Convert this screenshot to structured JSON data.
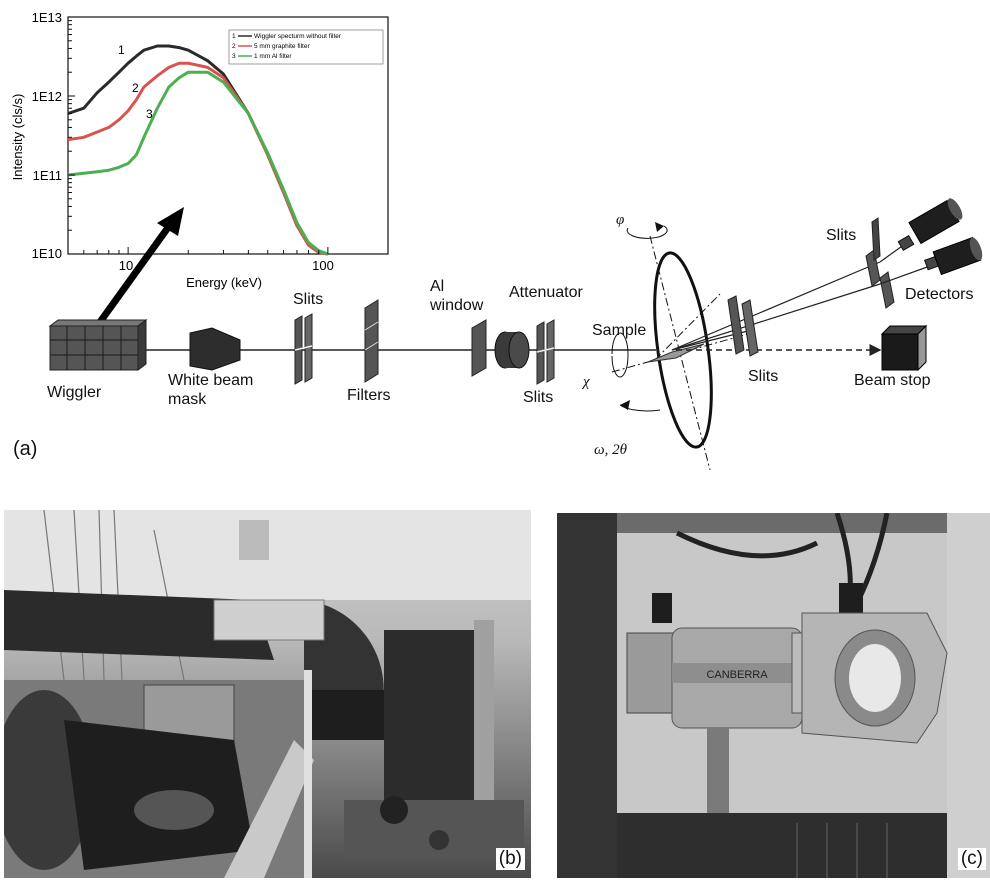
{
  "spectrum_plot": {
    "ylabel": "Intensity (cls/s)",
    "xlabel": "Energy (keV)",
    "x_ticks": [
      "10",
      "100"
    ],
    "y_ticks": [
      "1E13",
      "1E12",
      "1E11",
      "1E10"
    ],
    "curve_numbers": [
      "1",
      "2",
      "3"
    ],
    "legend": [
      {
        "num": "1",
        "label": "Wiggler specturm without filter",
        "color": "#2a2a2a"
      },
      {
        "num": "2",
        "label": "5 mm graphite filter",
        "color": "#d9534f"
      },
      {
        "num": "3",
        "label": "1 mm Al filter",
        "color": "#4caf50"
      }
    ]
  },
  "chart_data": {
    "type": "line",
    "title": "",
    "xlabel": "Energy (keV)",
    "ylabel": "Intensity (cls/s)",
    "xscale": "log",
    "yscale": "log",
    "xlim": [
      5,
      200
    ],
    "ylim": [
      10000000000.0,
      10000000000000.0
    ],
    "grid": false,
    "legend_position": "top-right",
    "series": [
      {
        "name": "Wiggler specturm without filter",
        "x": [
          5,
          6,
          7,
          8,
          9,
          10,
          11,
          12,
          14,
          16,
          18,
          20,
          25,
          30,
          40,
          50,
          60,
          70,
          80,
          90,
          100
        ],
        "y": [
          600000000000.0,
          700000000000.0,
          1100000000000.0,
          1500000000000.0,
          2000000000000.0,
          2600000000000.0,
          3200000000000.0,
          3800000000000.0,
          4300000000000.0,
          4300000000000.0,
          4100000000000.0,
          3800000000000.0,
          2800000000000.0,
          1900000000000.0,
          600000000000.0,
          180000000000.0,
          60000000000.0,
          23000000000.0,
          13000000000.0,
          10500000000.0,
          10000000000.0
        ]
      },
      {
        "name": "5 mm graphite filter",
        "x": [
          5,
          6,
          7,
          8,
          9,
          10,
          11,
          12,
          14,
          16,
          18,
          20,
          25,
          30,
          40,
          50,
          60,
          70,
          80,
          90,
          100
        ],
        "y": [
          280000000000.0,
          300000000000.0,
          350000000000.0,
          400000000000.0,
          500000000000.0,
          650000000000.0,
          900000000000.0,
          1300000000000.0,
          1800000000000.0,
          2300000000000.0,
          2600000000000.0,
          2600000000000.0,
          2300000000000.0,
          1700000000000.0,
          600000000000.0,
          180000000000.0,
          60000000000.0,
          23000000000.0,
          13000000000.0,
          10500000000.0,
          10000000000.0
        ]
      },
      {
        "name": "1 mm Al filter",
        "x": [
          5,
          6,
          7,
          8,
          9,
          10,
          11,
          12,
          14,
          16,
          18,
          20,
          25,
          30,
          40,
          50,
          60,
          70,
          80,
          90,
          100
        ],
        "y": [
          100000000000.0,
          105000000000.0,
          110000000000.0,
          115000000000.0,
          125000000000.0,
          140000000000.0,
          180000000000.0,
          300000000000.0,
          700000000000.0,
          1300000000000.0,
          1700000000000.0,
          2000000000000.0,
          2000000000000.0,
          1500000000000.0,
          600000000000.0,
          190000000000.0,
          65000000000.0,
          25000000000.0,
          14000000000.0,
          11000000000.0,
          10000000000.0
        ]
      }
    ]
  },
  "beamline": {
    "wiggler": "Wiggler",
    "white_beam_mask": "White beam\nmask",
    "slits_1": "Slits",
    "filters": "Filters",
    "al_window": "Al\nwindow",
    "attenuator": "Attenuator",
    "slits_2": "Slits",
    "sample": "Sample",
    "chi": "χ",
    "phi": "φ",
    "omega_2theta": "ω, 2θ",
    "slits_3": "Slits",
    "slits_4": "Slits",
    "detectors": "Detectors",
    "beam_stop": "Beam stop"
  },
  "panel_labels": {
    "a": "(a)",
    "b": "(b)",
    "c": "(c)"
  },
  "photo_c_brand": "CANBERRA",
  "colors": {
    "black_curve": "#2a2a2a",
    "red_curve": "#d9534f",
    "green_curve": "#4caf50"
  }
}
